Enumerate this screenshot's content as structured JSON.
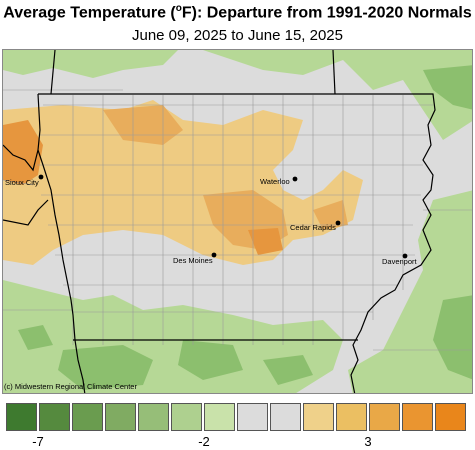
{
  "title": {
    "main_prefix": "Average Temperature (",
    "degree_sup": "o",
    "main_suffix": "F): Departure from 1991-2020 Normals",
    "subtitle": "June 09, 2025 to June 15, 2025"
  },
  "credit": "(c) Midwestern Regional Climate Center",
  "cities": [
    {
      "name": "Sioux City"
    },
    {
      "name": "Waterloo"
    },
    {
      "name": "Cedar Rapids"
    },
    {
      "name": "Des Moines"
    },
    {
      "name": "Davenport"
    }
  ],
  "legend": {
    "colors": [
      "#3e7a2f",
      "#558a3e",
      "#6a9c4f",
      "#80ab62",
      "#96be78",
      "#aed08f",
      "#c9e2aa",
      "#dcdcdc",
      "#dcdcdc",
      "#efd18a",
      "#ebbf62",
      "#e9a847",
      "#ea9530",
      "#e9861b"
    ],
    "labels": [
      {
        "text": "-7"
      },
      {
        "text": "-2"
      },
      {
        "text": "3"
      }
    ]
  },
  "colors": {
    "neutral": "#dcdcdc",
    "light_green": "#b6d896",
    "mid_green": "#8cbf6e",
    "light_orange": "#eecb82",
    "mid_orange": "#e8ad5c",
    "deep_orange": "#e6963e"
  }
}
